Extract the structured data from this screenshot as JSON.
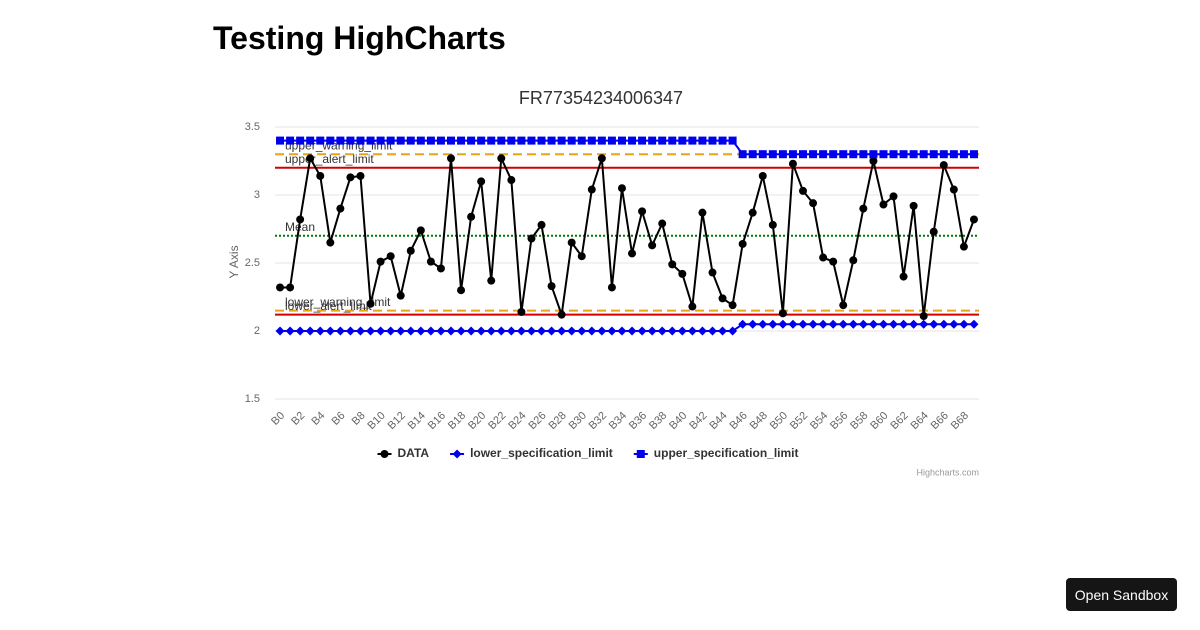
{
  "page": {
    "heading": "Testing HighCharts",
    "button": "Open Sandbox"
  },
  "chart_data": {
    "type": "line",
    "title": "FR77354234006347",
    "y_label": "Y Axis",
    "credits": "Highcharts.com",
    "categories": [
      "B0",
      null,
      "B2",
      null,
      "B4",
      null,
      "B6",
      null,
      "B8",
      null,
      "B10",
      null,
      "B12",
      null,
      "B14",
      null,
      "B16",
      null,
      "B18",
      null,
      "B20",
      null,
      "B22",
      null,
      "B24",
      null,
      "B26",
      null,
      "B28",
      null,
      "B30",
      null,
      "B32",
      null,
      "B34",
      null,
      "B36",
      null,
      "B38",
      null,
      "B40",
      null,
      "B42",
      null,
      "B44",
      null,
      "B46",
      null,
      "B48",
      null,
      "B50",
      null,
      "B52",
      null,
      "B54",
      null,
      "B56",
      null,
      "B58",
      null,
      "B60",
      null,
      "B62",
      null,
      "B64",
      null,
      "B66",
      null,
      "B68",
      null
    ],
    "series": [
      {
        "name": "DATA",
        "color": "#000000",
        "marker": "circle",
        "values": [
          2.32,
          2.32,
          2.82,
          3.27,
          3.14,
          2.65,
          2.9,
          3.13,
          3.14,
          2.2,
          2.51,
          2.55,
          2.26,
          2.59,
          2.74,
          2.51,
          2.46,
          3.27,
          2.3,
          2.84,
          3.1,
          2.37,
          3.27,
          3.11,
          2.14,
          2.68,
          2.78,
          2.33,
          2.12,
          2.65,
          2.55,
          3.04,
          3.27,
          2.32,
          3.05,
          2.57,
          2.88,
          2.63,
          2.79,
          2.49,
          2.42,
          2.18,
          2.87,
          2.43,
          2.24,
          2.19,
          2.64,
          2.87,
          3.14,
          2.78,
          2.13,
          3.23,
          3.03,
          2.94,
          2.54,
          2.51,
          2.19,
          2.52,
          2.9,
          3.25,
          2.93,
          2.99,
          2.4,
          2.92,
          2.11,
          2.73,
          3.22,
          3.04,
          2.62,
          2.82
        ]
      },
      {
        "name": "lower_specification_limit",
        "color": "#0000ee",
        "marker": "diamond",
        "values": [
          2,
          2,
          2,
          2,
          2,
          2,
          2,
          2,
          2,
          2,
          2,
          2,
          2,
          2,
          2,
          2,
          2,
          2,
          2,
          2,
          2,
          2,
          2,
          2,
          2,
          2,
          2,
          2,
          2,
          2,
          2,
          2,
          2,
          2,
          2,
          2,
          2,
          2,
          2,
          2,
          2,
          2,
          2,
          2,
          2,
          2,
          2.05,
          2.05,
          2.05,
          2.05,
          2.05,
          2.05,
          2.05,
          2.05,
          2.05,
          2.05,
          2.05,
          2.05,
          2.05,
          2.05,
          2.05,
          2.05,
          2.05,
          2.05,
          2.05,
          2.05,
          2.05,
          2.05,
          2.05,
          2.05
        ]
      },
      {
        "name": "upper_specification_limit",
        "color": "#0000ee",
        "marker": "square",
        "values": [
          3.4,
          3.4,
          3.4,
          3.4,
          3.4,
          3.4,
          3.4,
          3.4,
          3.4,
          3.4,
          3.4,
          3.4,
          3.4,
          3.4,
          3.4,
          3.4,
          3.4,
          3.4,
          3.4,
          3.4,
          3.4,
          3.4,
          3.4,
          3.4,
          3.4,
          3.4,
          3.4,
          3.4,
          3.4,
          3.4,
          3.4,
          3.4,
          3.4,
          3.4,
          3.4,
          3.4,
          3.4,
          3.4,
          3.4,
          3.4,
          3.4,
          3.4,
          3.4,
          3.4,
          3.4,
          3.4,
          3.3,
          3.3,
          3.3,
          3.3,
          3.3,
          3.3,
          3.3,
          3.3,
          3.3,
          3.3,
          3.3,
          3.3,
          3.3,
          3.3,
          3.3,
          3.3,
          3.3,
          3.3,
          3.3,
          3.3,
          3.3,
          3.3,
          3.3,
          3.3
        ]
      }
    ],
    "plot_lines": [
      {
        "label": "upper_warning_limit",
        "value": 3.3,
        "color": "#e8a317",
        "dash": "dash"
      },
      {
        "label": "upper_alert_limit",
        "value": 3.2,
        "color": "#d00000",
        "dash": "solid"
      },
      {
        "label": "Mean",
        "value": 2.7,
        "color": "#007a00",
        "dash": "dot"
      },
      {
        "label": "lower_warning_limit",
        "value": 2.15,
        "color": "#e8a317",
        "dash": "dash"
      },
      {
        "label": "lower_alert_limit",
        "value": 2.12,
        "color": "#d00000",
        "dash": "solid"
      }
    ],
    "ylim": [
      1.5,
      3.5
    ],
    "yticks": [
      1.5,
      2,
      2.5,
      3,
      3.5
    ],
    "grid": true,
    "legend": "bottom"
  }
}
